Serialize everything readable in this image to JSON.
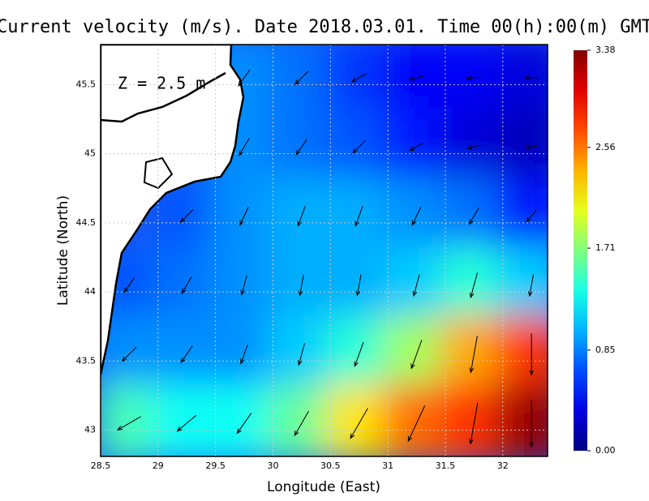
{
  "chart_data": {
    "type": "quiver",
    "title": "Current velocity (m/s). Date 2018.03.01. Time 00(h):00(m) GMT",
    "annotation": "Z = 2.5 m",
    "x_label": "Longitude (East)",
    "y_label": "Latitude (North)",
    "xlim": [
      28.5,
      32.39
    ],
    "ylim": [
      42.81,
      45.79
    ],
    "xticks": [
      28.5,
      29,
      29.5,
      30,
      30.5,
      31,
      31.5,
      32
    ],
    "yticks": [
      43,
      43.5,
      44,
      44.5,
      45,
      45.5
    ],
    "grid": true,
    "colorbar": {
      "lim": [
        0,
        3.38
      ],
      "ticks": [
        {
          "value": 0,
          "label": "0.00"
        },
        0.85,
        1.71,
        2.56,
        3.38
      ],
      "colormap": "jet"
    },
    "lon": [
      28.75,
      29.25,
      29.75,
      30.25,
      30.75,
      31.25,
      31.75,
      32.25
    ],
    "lat": [
      45.55,
      45.05,
      44.55,
      44.05,
      43.55,
      43.05
    ],
    "speed": [
      [
        null,
        null,
        0.9,
        0.8,
        0.6,
        0.4,
        0.4,
        0.3
      ],
      [
        null,
        null,
        0.9,
        0.8,
        0.7,
        0.5,
        0.3,
        0.2
      ],
      [
        null,
        0.7,
        0.9,
        1.0,
        1.0,
        0.9,
        0.8,
        0.5
      ],
      [
        0.7,
        0.8,
        0.9,
        1.0,
        1.0,
        1.1,
        1.4,
        1.1
      ],
      [
        0.9,
        0.9,
        0.9,
        1.1,
        1.4,
        1.8,
        2.4,
        2.8
      ],
      [
        1.5,
        1.3,
        1.3,
        1.6,
        2.2,
        2.6,
        2.8,
        3.3
      ]
    ],
    "direction_deg": [
      [
        null,
        null,
        215,
        225,
        240,
        255,
        265,
        270
      ],
      [
        null,
        null,
        210,
        215,
        225,
        240,
        255,
        265
      ],
      [
        null,
        225,
        205,
        200,
        200,
        205,
        210,
        220
      ],
      [
        215,
        210,
        195,
        190,
        190,
        195,
        195,
        190
      ],
      [
        225,
        215,
        200,
        195,
        200,
        200,
        190,
        180
      ],
      [
        240,
        230,
        215,
        210,
        210,
        205,
        190,
        180
      ]
    ]
  }
}
